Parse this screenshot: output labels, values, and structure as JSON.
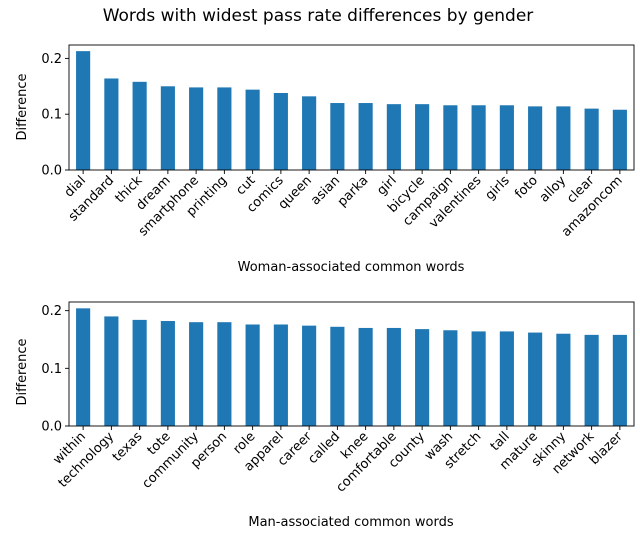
{
  "chart_data": [
    {
      "type": "bar",
      "title": "Words with widest pass rate differences by gender",
      "xlabel": "Woman-associated common words",
      "ylabel": "Difference",
      "ylim": [
        0,
        0.224
      ],
      "yticks": [
        0.0,
        0.1,
        0.2
      ],
      "ytick_labels": [
        "0.0",
        "0.1",
        "0.2"
      ],
      "color": "#1f77b4",
      "categories": [
        "dial",
        "standard",
        "thick",
        "dream",
        "smartphone",
        "printing",
        "cut",
        "comics",
        "queen",
        "asian",
        "parka",
        "girl",
        "bicycle",
        "campaign",
        "valentines",
        "girls",
        "foto",
        "alloy",
        "clear",
        "amazoncom"
      ],
      "values": [
        0.213,
        0.164,
        0.158,
        0.15,
        0.148,
        0.148,
        0.144,
        0.138,
        0.132,
        0.12,
        0.12,
        0.118,
        0.118,
        0.116,
        0.116,
        0.116,
        0.114,
        0.114,
        0.11,
        0.108
      ]
    },
    {
      "type": "bar",
      "title": "",
      "xlabel": "Man-associated common words",
      "ylabel": "Difference",
      "ylim": [
        0,
        0.215
      ],
      "yticks": [
        0.0,
        0.1,
        0.2
      ],
      "ytick_labels": [
        "0.0",
        "0.1",
        "0.2"
      ],
      "color": "#1f77b4",
      "categories": [
        "within",
        "technology",
        "texas",
        "tote",
        "community",
        "person",
        "role",
        "apparel",
        "career",
        "called",
        "knee",
        "comfortable",
        "county",
        "wash",
        "stretch",
        "tall",
        "mature",
        "skinny",
        "network",
        "blazer"
      ],
      "values": [
        0.204,
        0.19,
        0.184,
        0.182,
        0.18,
        0.18,
        0.176,
        0.176,
        0.174,
        0.172,
        0.17,
        0.17,
        0.168,
        0.166,
        0.164,
        0.164,
        0.162,
        0.16,
        0.158,
        0.158
      ]
    }
  ]
}
